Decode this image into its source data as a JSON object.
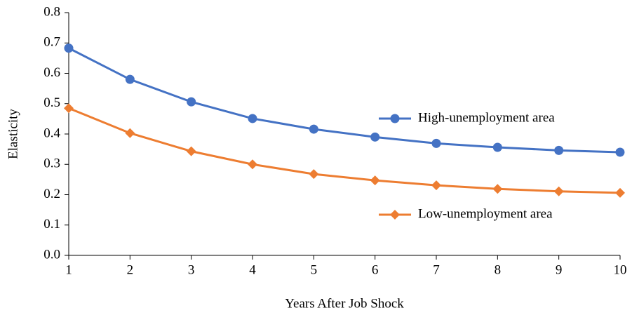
{
  "chart_data": {
    "type": "line",
    "x_label": "Years After Job Shock",
    "y_label": "Elasticity",
    "x": [
      1,
      2,
      3,
      4,
      5,
      6,
      7,
      8,
      9,
      10
    ],
    "xlim": [
      1,
      10
    ],
    "xticks": [
      1,
      2,
      3,
      4,
      5,
      6,
      7,
      8,
      9,
      10
    ],
    "ylim": [
      0,
      0.8
    ],
    "yticks": [
      {
        "value": 0,
        "label": "0.0"
      },
      0.1,
      0.2,
      0.3,
      0.4,
      0.5,
      0.6,
      0.7,
      0.8
    ],
    "grid": false,
    "series": [
      {
        "name": "High-unemployment area",
        "color": "#4472c4",
        "marker": "circle",
        "values": [
          0.683,
          0.58,
          0.506,
          0.451,
          0.416,
          0.39,
          0.369,
          0.356,
          0.346,
          0.34
        ]
      },
      {
        "name": "Low-unemployment area",
        "color": "#ed7d31",
        "marker": "diamond",
        "values": [
          0.485,
          0.403,
          0.343,
          0.3,
          0.268,
          0.247,
          0.231,
          0.219,
          0.211,
          0.206
        ]
      }
    ]
  }
}
